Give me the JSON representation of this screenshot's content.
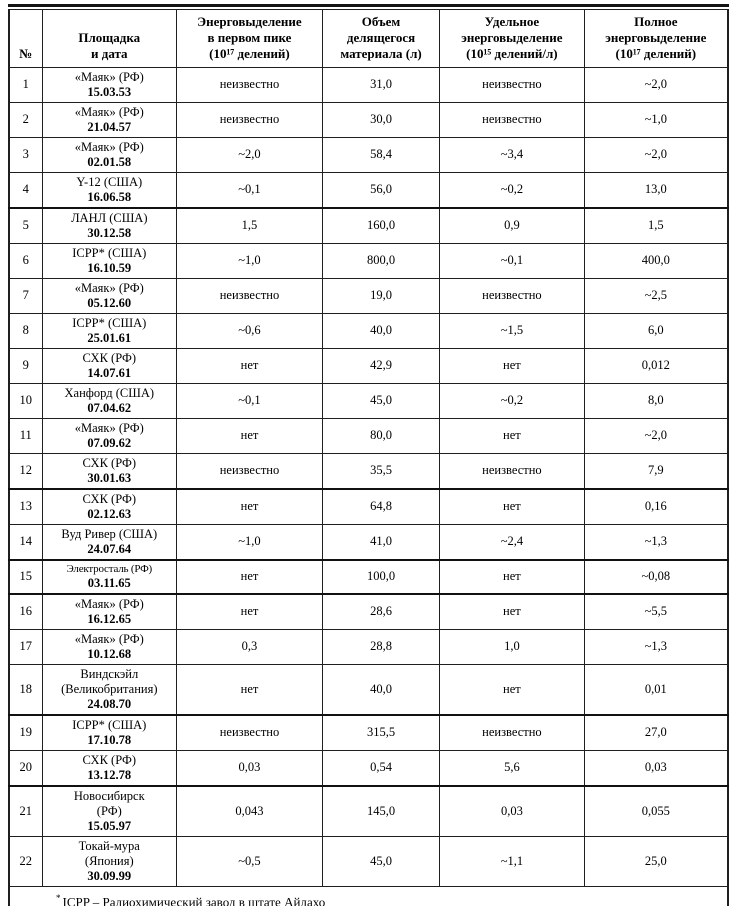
{
  "page": {
    "background": "#ffffff",
    "border_color": "#1f1f1f",
    "text_color": "#000000"
  },
  "table": {
    "headers": {
      "num": "№",
      "site": "Площадка\nи дата",
      "peak": "Энерговыделение\nв первом пике\n(10¹⁷ делений)",
      "volume": "Объем\nделящегося\nматериала (л)",
      "specific": "Удельное\nэнерговыделение\n(10¹⁵ делений/л)",
      "total": "Полное\nэнерговыделение\n(10¹⁷ делений)"
    },
    "rows": [
      {
        "num": "1",
        "site": "«Маяк» (РФ)",
        "date": "15.03.53",
        "peak": "неизвестно",
        "volume": "31,0",
        "specific": "неизвестно",
        "total": "~2,0"
      },
      {
        "num": "2",
        "site": "«Маяк» (РФ)",
        "date": "21.04.57",
        "peak": "неизвестно",
        "volume": "30,0",
        "specific": "неизвестно",
        "total": "~1,0"
      },
      {
        "num": "3",
        "site": "«Маяк» (РФ)",
        "date": "02.01.58",
        "peak": "~2,0",
        "volume": "58,4",
        "specific": "~3,4",
        "total": "~2,0"
      },
      {
        "num": "4",
        "site": "Y-12 (США)",
        "date": "16.06.58",
        "peak": "~0,1",
        "volume": "56,0",
        "specific": "~0,2",
        "total": "13,0"
      },
      {
        "num": "5",
        "site": "ЛАНЛ (США)",
        "date": "30.12.58",
        "peak": "1,5",
        "volume": "160,0",
        "specific": "0,9",
        "total": "1,5"
      },
      {
        "num": "6",
        "site": "ICPP* (США)",
        "date": "16.10.59",
        "peak": "~1,0",
        "volume": "800,0",
        "specific": "~0,1",
        "total": "400,0"
      },
      {
        "num": "7",
        "site": "«Маяк» (РФ)",
        "date": "05.12.60",
        "peak": "неизвестно",
        "volume": "19,0",
        "specific": "неизвестно",
        "total": "~2,5"
      },
      {
        "num": "8",
        "site": "ICPP* (США)",
        "date": "25.01.61",
        "peak": "~0,6",
        "volume": "40,0",
        "specific": "~1,5",
        "total": "6,0"
      },
      {
        "num": "9",
        "site": "СХК (РФ)",
        "date": "14.07.61",
        "peak": "нет",
        "volume": "42,9",
        "specific": "нет",
        "total": "0,012"
      },
      {
        "num": "10",
        "site": "Ханфорд (США)",
        "date": "07.04.62",
        "peak": "~0,1",
        "volume": "45,0",
        "specific": "~0,2",
        "total": "8,0"
      },
      {
        "num": "11",
        "site": "«Маяк» (РФ)",
        "date": "07.09.62",
        "peak": "нет",
        "volume": "80,0",
        "specific": "нет",
        "total": "~2,0"
      },
      {
        "num": "12",
        "site": "СХК (РФ)",
        "date": "30.01.63",
        "peak": "неизвестно",
        "volume": "35,5",
        "specific": "неизвестно",
        "total": "7,9"
      },
      {
        "num": "13",
        "site": "СХК (РФ)",
        "date": "02.12.63",
        "peak": "нет",
        "volume": "64,8",
        "specific": "нет",
        "total": "0,16"
      },
      {
        "num": "14",
        "site": "Вуд Ривер (США)",
        "date": "24.07.64",
        "peak": "~1,0",
        "volume": "41,0",
        "specific": "~2,4",
        "total": "~1,3"
      },
      {
        "num": "15",
        "site": "Электросталь (РФ)",
        "date": "03.11.65",
        "peak": "нет",
        "volume": "100,0",
        "specific": "нет",
        "total": "~0,08"
      },
      {
        "num": "16",
        "site": "«Маяк» (РФ)",
        "date": "16.12.65",
        "peak": "нет",
        "volume": "28,6",
        "specific": "нет",
        "total": "~5,5"
      },
      {
        "num": "17",
        "site": "«Маяк» (РФ)",
        "date": "10.12.68",
        "peak": "0,3",
        "volume": "28,8",
        "specific": "1,0",
        "total": "~1,3"
      },
      {
        "num": "18",
        "site": "Виндскэйл\n(Великобритания)",
        "date": "24.08.70",
        "peak": "нет",
        "volume": "40,0",
        "specific": "нет",
        "total": "0,01"
      },
      {
        "num": "19",
        "site": "ICPP* (США)",
        "date": "17.10.78",
        "peak": "неизвестно",
        "volume": "315,5",
        "specific": "неизвестно",
        "total": "27,0"
      },
      {
        "num": "20",
        "site": "СХК (РФ)",
        "date": "13.12.78",
        "peak": "0,03",
        "volume": "0,54",
        "specific": "5,6",
        "total": "0,03"
      },
      {
        "num": "21",
        "site": "Новосибирск\n(РФ)",
        "date": "15.05.97",
        "peak": "0,043",
        "volume": "145,0",
        "specific": "0,03",
        "total": "0,055"
      },
      {
        "num": "22",
        "site": "Токай-мура\n(Япония)",
        "date": "30.09.99",
        "peak": "~0,5",
        "volume": "45,0",
        "specific": "~1,1",
        "total": "25,0"
      }
    ],
    "footnote": {
      "marker": "*",
      "text": "ICPP – Радиохимический завод в штате Айдахо"
    }
  }
}
